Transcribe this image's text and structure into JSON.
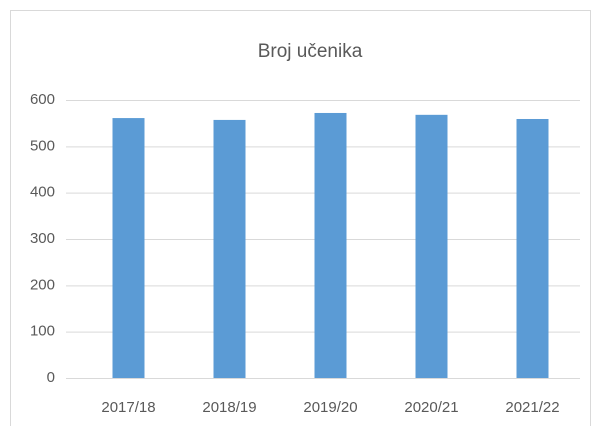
{
  "chart_data": {
    "type": "bar",
    "title": "Broj učenika",
    "categories": [
      "2017/18",
      "2018/19",
      "2019/20",
      "2020/21",
      "2021/22"
    ],
    "values": [
      561,
      557,
      572,
      568,
      559
    ],
    "color": "#5b9bd5",
    "ylim": [
      0,
      600
    ],
    "yticks": [
      0,
      100,
      200,
      300,
      400,
      500,
      600
    ],
    "grid": true
  }
}
